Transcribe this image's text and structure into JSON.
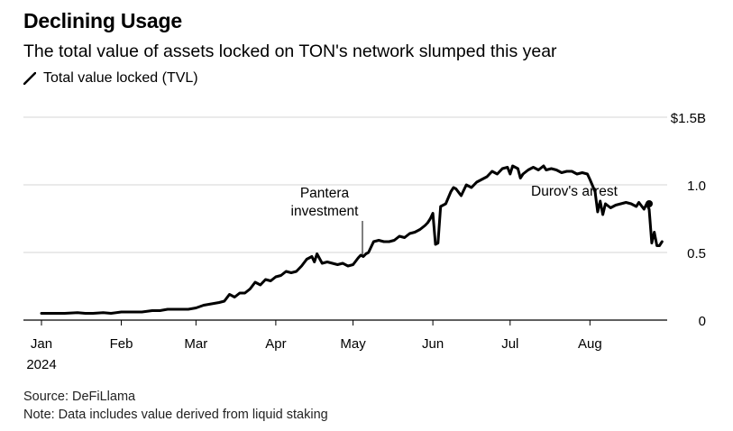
{
  "header": {
    "title": "Declining Usage",
    "subtitle": "The total value of assets locked on TON's network slumped this year",
    "legend_label": "Total value locked (TVL)"
  },
  "footer": {
    "source": "Source: DeFiLlama",
    "note": "Note: Data includes value derived from liquid staking"
  },
  "chart_data": {
    "type": "line",
    "title": "Declining Usage",
    "xlabel": "",
    "ylabel": "",
    "ylim": [
      0,
      1.5
    ],
    "yticks": [
      {
        "value": 1.5,
        "label": "$1.5B"
      },
      {
        "value": 1.0,
        "label": "1.0"
      },
      {
        "value": 0.5,
        "label": "0.5"
      },
      {
        "value": 0,
        "label": "0"
      }
    ],
    "xlim": [
      1,
      244
    ],
    "xticks": [
      {
        "day": 1,
        "label": "Jan"
      },
      {
        "day": 32,
        "label": "Feb"
      },
      {
        "day": 61,
        "label": "Mar"
      },
      {
        "day": 92,
        "label": "Apr"
      },
      {
        "day": 122,
        "label": "May"
      },
      {
        "day": 153,
        "label": "Jun"
      },
      {
        "day": 183,
        "label": "Jul"
      },
      {
        "day": 214,
        "label": "Aug"
      }
    ],
    "year_label": "2024",
    "line_color": "#000000",
    "series": [
      {
        "name": "Total value locked (TVL)",
        "unit": "USD billions",
        "points": [
          [
            1,
            0.05
          ],
          [
            5,
            0.05
          ],
          [
            10,
            0.05
          ],
          [
            15,
            0.055
          ],
          [
            18,
            0.05
          ],
          [
            21,
            0.05
          ],
          [
            25,
            0.055
          ],
          [
            28,
            0.05
          ],
          [
            32,
            0.06
          ],
          [
            36,
            0.06
          ],
          [
            40,
            0.06
          ],
          [
            44,
            0.07
          ],
          [
            47,
            0.07
          ],
          [
            50,
            0.08
          ],
          [
            54,
            0.08
          ],
          [
            58,
            0.08
          ],
          [
            61,
            0.09
          ],
          [
            64,
            0.11
          ],
          [
            67,
            0.12
          ],
          [
            70,
            0.13
          ],
          [
            72,
            0.14
          ],
          [
            74,
            0.19
          ],
          [
            76,
            0.17
          ],
          [
            78,
            0.2
          ],
          [
            80,
            0.2
          ],
          [
            82,
            0.23
          ],
          [
            84,
            0.28
          ],
          [
            86,
            0.26
          ],
          [
            88,
            0.3
          ],
          [
            90,
            0.29
          ],
          [
            92,
            0.32
          ],
          [
            94,
            0.33
          ],
          [
            96,
            0.36
          ],
          [
            98,
            0.35
          ],
          [
            100,
            0.36
          ],
          [
            102,
            0.4
          ],
          [
            104,
            0.45
          ],
          [
            106,
            0.47
          ],
          [
            107,
            0.43
          ],
          [
            108,
            0.49
          ],
          [
            110,
            0.42
          ],
          [
            112,
            0.43
          ],
          [
            114,
            0.42
          ],
          [
            116,
            0.41
          ],
          [
            118,
            0.42
          ],
          [
            120,
            0.4
          ],
          [
            122,
            0.41
          ],
          [
            124,
            0.46
          ],
          [
            125,
            0.48
          ],
          [
            126,
            0.47
          ],
          [
            127,
            0.49
          ],
          [
            128,
            0.5
          ],
          [
            130,
            0.58
          ],
          [
            132,
            0.59
          ],
          [
            134,
            0.58
          ],
          [
            136,
            0.58
          ],
          [
            138,
            0.59
          ],
          [
            140,
            0.62
          ],
          [
            142,
            0.61
          ],
          [
            144,
            0.64
          ],
          [
            146,
            0.65
          ],
          [
            148,
            0.67
          ],
          [
            150,
            0.7
          ],
          [
            151,
            0.72
          ],
          [
            152,
            0.75
          ],
          [
            153,
            0.79
          ],
          [
            154,
            0.56
          ],
          [
            155,
            0.57
          ],
          [
            156,
            0.84
          ],
          [
            158,
            0.86
          ],
          [
            160,
            0.95
          ],
          [
            161,
            0.98
          ],
          [
            162,
            0.97
          ],
          [
            164,
            0.92
          ],
          [
            166,
            1.0
          ],
          [
            168,
            0.98
          ],
          [
            170,
            1.02
          ],
          [
            172,
            1.04
          ],
          [
            174,
            1.06
          ],
          [
            176,
            1.1
          ],
          [
            178,
            1.08
          ],
          [
            180,
            1.12
          ],
          [
            182,
            1.13
          ],
          [
            183,
            1.08
          ],
          [
            184,
            1.14
          ],
          [
            186,
            1.12
          ],
          [
            187,
            1.05
          ],
          [
            188,
            1.08
          ],
          [
            190,
            1.11
          ],
          [
            192,
            1.13
          ],
          [
            194,
            1.11
          ],
          [
            196,
            1.14
          ],
          [
            197,
            1.11
          ],
          [
            199,
            1.12
          ],
          [
            201,
            1.11
          ],
          [
            203,
            1.09
          ],
          [
            205,
            1.1
          ],
          [
            207,
            1.1
          ],
          [
            209,
            1.08
          ],
          [
            211,
            1.09
          ],
          [
            213,
            1.08
          ],
          [
            214,
            1.04
          ],
          [
            216,
            0.95
          ],
          [
            217,
            0.8
          ],
          [
            218,
            0.88
          ],
          [
            219,
            0.78
          ],
          [
            220,
            0.86
          ],
          [
            222,
            0.83
          ],
          [
            224,
            0.85
          ],
          [
            226,
            0.86
          ],
          [
            228,
            0.87
          ],
          [
            230,
            0.86
          ],
          [
            232,
            0.84
          ],
          [
            233,
            0.87
          ],
          [
            235,
            0.82
          ],
          [
            236,
            0.86
          ],
          [
            237,
            0.82
          ],
          [
            238,
            0.57
          ],
          [
            239,
            0.65
          ],
          [
            240,
            0.55
          ],
          [
            241,
            0.55
          ],
          [
            242,
            0.58
          ]
        ]
      }
    ],
    "annotations": [
      {
        "text_lines": [
          "Pantera",
          "investment"
        ],
        "day": 126,
        "value": 0.47
      },
      {
        "text_lines": [
          "Durov's arrest"
        ],
        "day": 237,
        "value": 0.86
      }
    ]
  }
}
